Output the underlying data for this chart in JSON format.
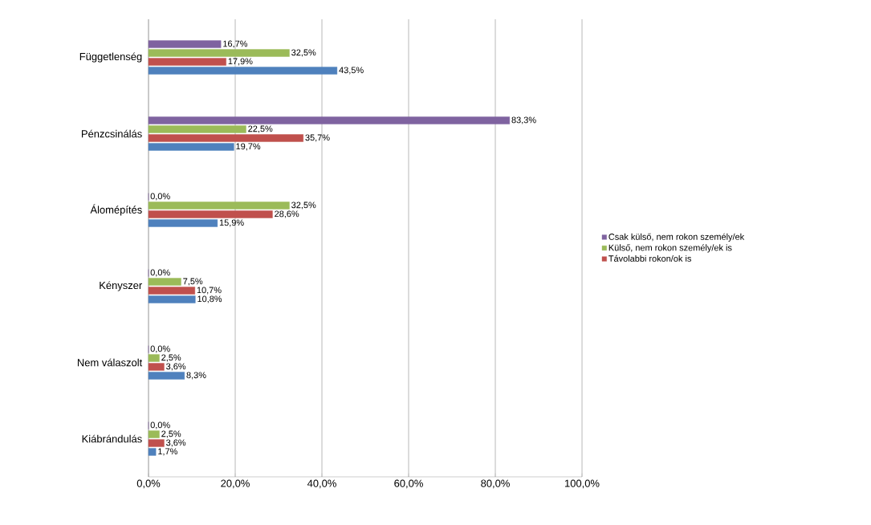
{
  "chart_data": {
    "type": "bar",
    "orientation": "horizontal",
    "categories": [
      "Függetlenség",
      "Pénzcsinálás",
      "Álomépítés",
      "Kényszer",
      "Nem válaszolt",
      "Kiábrándulás"
    ],
    "series": [
      {
        "name": "Csak külső, nem rokon személy/ek",
        "color": "#7f63a0",
        "values": [
          16.7,
          83.3,
          0.0,
          0.0,
          0.0,
          0.0
        ],
        "value_labels": [
          "16,7%",
          "83,3%",
          "0,0%",
          "0,0%",
          "0,0%",
          "0,0%"
        ]
      },
      {
        "name": "Külső, nem rokon személy/ek is",
        "color": "#9bbb59",
        "values": [
          32.5,
          22.5,
          32.5,
          7.5,
          2.5,
          2.5
        ],
        "value_labels": [
          "32,5%",
          "22,5%",
          "32,5%",
          "7,5%",
          "2,5%",
          "2,5%"
        ]
      },
      {
        "name": "Távolabbi rokon/ok is",
        "color": "#c0504d",
        "values": [
          17.9,
          35.7,
          28.6,
          10.7,
          3.6,
          3.6
        ],
        "value_labels": [
          "17,9%",
          "35,7%",
          "28,6%",
          "10,7%",
          "3,6%",
          "3,6%"
        ]
      },
      {
        "color": "#4f81bd",
        "values": [
          43.5,
          19.7,
          15.9,
          10.8,
          8.3,
          1.7
        ],
        "value_labels": [
          "43,5%",
          "19,7%",
          "15,9%",
          "10,8%",
          "8,3%",
          "1,7%"
        ]
      }
    ],
    "xlim": [
      0,
      100
    ],
    "xticks": [
      {
        "value": 0,
        "label": "0,0%"
      },
      {
        "value": 20,
        "label": "20,0%"
      },
      {
        "value": 40,
        "label": "40,0%"
      },
      {
        "value": 60,
        "label": "60,0%"
      },
      {
        "value": 80,
        "label": "80,0%"
      },
      {
        "value": 100,
        "label": "100,0%"
      }
    ],
    "grid": "x",
    "legend": "right"
  }
}
